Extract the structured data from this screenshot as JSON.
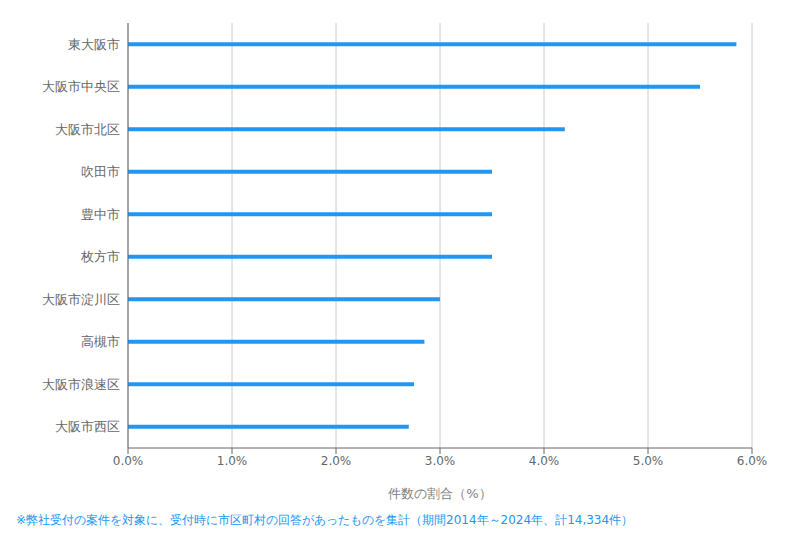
{
  "chart_data": {
    "type": "bar",
    "orientation": "horizontal",
    "categories": [
      "大阪市西区",
      "大阪市浪速区",
      "高槻市",
      "大阪市淀川区",
      "枚方市",
      "豊中市",
      "吹田市",
      "大阪市北区",
      "大阪市中央区",
      "東大阪市"
    ],
    "values": [
      2.7,
      2.75,
      2.85,
      3.0,
      3.5,
      3.5,
      3.5,
      4.2,
      5.5,
      5.85
    ],
    "color": "#2196F3",
    "xlabel": "件数の割合（%）",
    "xlim": [
      0,
      6.0
    ],
    "xticks": [
      {
        "value": 0.0,
        "label": "0.0%"
      },
      {
        "value": 1.0,
        "label": "1.0%"
      },
      {
        "value": 2.0,
        "label": "2.0%"
      },
      {
        "value": 3.0,
        "label": "3.0%"
      },
      {
        "value": 4.0,
        "label": "4.0%"
      },
      {
        "value": 5.0,
        "label": "5.0%"
      },
      {
        "value": 6.0,
        "label": "6.0%"
      }
    ],
    "grid": true,
    "annotations": [
      {
        "text": "※弊社受付の案件を対象に、受付時に市区町村の回答があったものを集計（期間2014年～2024年、計14,334件）",
        "color": "#2196F3"
      }
    ]
  }
}
